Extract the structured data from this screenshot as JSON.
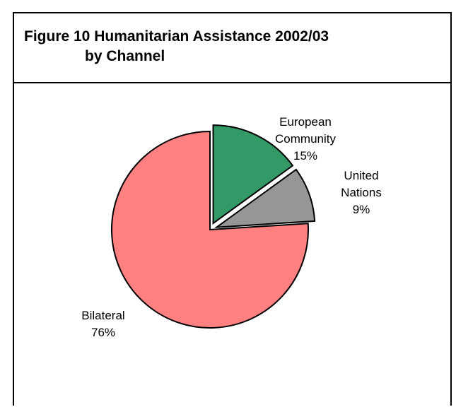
{
  "title": {
    "line1": "Figure 10 Humanitarian Assistance 2002/03",
    "line2": "by Channel"
  },
  "chart_data": {
    "type": "pie",
    "title": "Figure 10 Humanitarian Assistance 2002/03 by Channel",
    "slices": [
      {
        "label": "European Community",
        "label_lines": [
          "European",
          "Community"
        ],
        "value": 15,
        "value_label": "15%",
        "color": "#339966",
        "exploded": true
      },
      {
        "label": "United Nations",
        "label_lines": [
          "United",
          "Nations"
        ],
        "value": 9,
        "value_label": "9%",
        "color": "#969696",
        "exploded": true
      },
      {
        "label": "Bilateral",
        "label_lines": [
          "Bilateral"
        ],
        "value": 76,
        "value_label": "76%",
        "color": "#ff8080",
        "exploded": false
      }
    ]
  }
}
